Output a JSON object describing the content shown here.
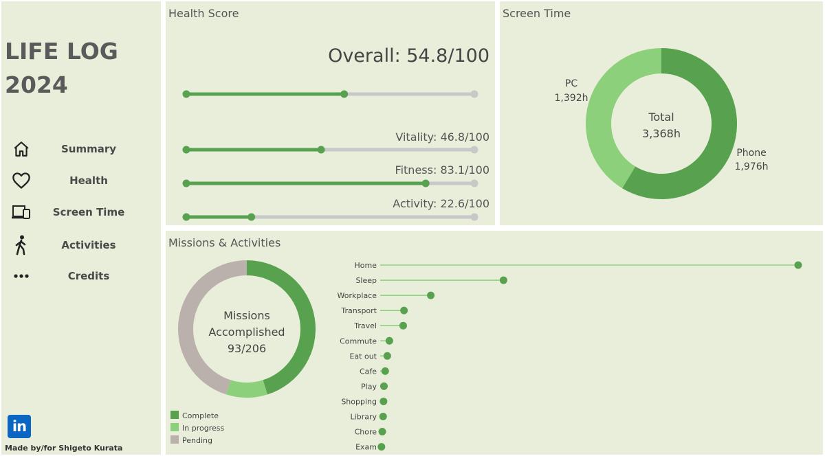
{
  "sidebar": {
    "title_line1": "LIFE LOG",
    "title_line2": "2024",
    "items": [
      {
        "label": "Summary",
        "icon": "home-icon"
      },
      {
        "label": "Health",
        "icon": "heart-icon"
      },
      {
        "label": "Screen Time",
        "icon": "devices-icon"
      },
      {
        "label": "Activities",
        "icon": "walking-icon"
      },
      {
        "label": "Credits",
        "icon": "more-icon"
      }
    ],
    "linkedin_text": "in",
    "credit": "Made by/for Shigeto Kurata"
  },
  "colors": {
    "panel_bg": "#e9eeda",
    "green_dark": "#58a14e",
    "green_light": "#8dd07c",
    "track_gray": "#c8c8c8",
    "pending": "#bab0ac"
  },
  "health": {
    "title": "Health Score",
    "overall_label": "Overall: 54.8/100",
    "overall_value": 54.8,
    "metrics": [
      {
        "label": "Vitality: 46.8/100",
        "value": 46.8
      },
      {
        "label": "Fitness: 83.1/100",
        "value": 83.1
      },
      {
        "label": "Activity: 22.6/100",
        "value": 22.6
      }
    ],
    "max": 100
  },
  "screen_time": {
    "title": "Screen Time",
    "center_line1": "Total",
    "center_line2": "3,368h",
    "chart_data": {
      "type": "pie",
      "slices": [
        {
          "name": "Phone",
          "label": "1,976h",
          "value": 1976,
          "color": "#58a14e"
        },
        {
          "name": "PC",
          "label": "1,392h",
          "value": 1392,
          "color": "#8dd07c"
        }
      ]
    }
  },
  "missions": {
    "title": "Missions & Activities",
    "center_line1": "Missions",
    "center_line2": "Accomplished",
    "center_line3": "93/206",
    "donut": {
      "type": "pie",
      "slices": [
        {
          "name": "Complete",
          "value": 93,
          "color": "#58a14e"
        },
        {
          "name": "In progress",
          "value": 20,
          "color": "#8dd07c"
        },
        {
          "name": "Pending",
          "value": 93,
          "color": "#bab0ac"
        }
      ]
    },
    "legend": [
      {
        "label": "Complete",
        "color": "#58a14e"
      },
      {
        "label": "In progress",
        "color": "#8dd07c"
      },
      {
        "label": "Pending",
        "color": "#bab0ac"
      }
    ],
    "lollipop": {
      "type": "bar",
      "categories": [
        "Home",
        "Sleep",
        "Workplace",
        "Transport",
        "Travel",
        "Commute",
        "Eat out",
        "Cafe",
        "Play",
        "Shopping",
        "Library",
        "Chore",
        "Exam"
      ],
      "values": [
        100,
        29.5,
        12.1,
        5.7,
        5.5,
        2.2,
        1.7,
        1.2,
        0.9,
        0.8,
        0.7,
        0.5,
        0.3
      ]
    }
  }
}
